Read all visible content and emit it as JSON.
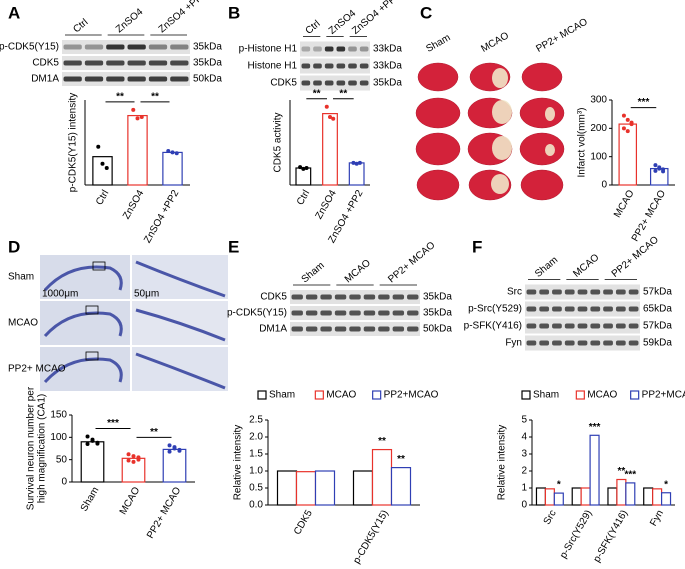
{
  "labels": [
    "A",
    "B",
    "C",
    "D",
    "E",
    "F"
  ],
  "blots": {
    "A": {
      "columns": [
        "Ctrl",
        "ZnSO4",
        "ZnSO4 +PP2"
      ],
      "rows": [
        {
          "label": "p-CDK5(Y15)",
          "kda": "35kDa"
        },
        {
          "label": "CDK5",
          "kda": "35kDa"
        },
        {
          "label": "DM1A",
          "kda": "50kDa"
        }
      ]
    },
    "B": {
      "columns": [
        "Ctrl",
        "ZnSO4",
        "ZnSO4 +PP2"
      ],
      "rows": [
        {
          "label": "p-Histone H1",
          "kda": "33kDa"
        },
        {
          "label": "Histone H1",
          "kda": "33kDa"
        },
        {
          "label": "CDK5",
          "kda": "35kDa"
        }
      ]
    },
    "E": {
      "columns": [
        "Sham",
        "MCAO",
        "PP2+ MCAO"
      ],
      "rows": [
        {
          "label": "CDK5",
          "kda": "35kDa"
        },
        {
          "label": "p-CDK5(Y15)",
          "kda": "35kDa"
        },
        {
          "label": "DM1A",
          "kda": "50kDa"
        }
      ]
    },
    "F": {
      "columns": [
        "Sham",
        "MCAO",
        "PP2+ MCAO"
      ],
      "rows": [
        {
          "label": "Src",
          "kda": "57kDa"
        },
        {
          "label": "p-Src(Y529)",
          "kda": "65kDa"
        },
        {
          "label": "p-SFK(Y416)",
          "kda": "57kDa"
        },
        {
          "label": "Fyn",
          "kda": "59kDa"
        }
      ]
    }
  },
  "images": {
    "C": {
      "columns": [
        "Sham",
        "MCAO",
        "PP2+ MCAO"
      ]
    },
    "D": {
      "rows": [
        "Sham",
        "MCAO",
        "PP2+ MCAO"
      ],
      "scale_bars": [
        "1000μm",
        "50μm"
      ]
    }
  },
  "chart_data": [
    {
      "type": "bar",
      "ylabel": [
        "p-CDK5(Y15) intensity"
      ],
      "categories": [
        "Ctrl",
        "ZnSO4",
        "ZnSO4 +PP2"
      ],
      "colors": [
        "#000000",
        "#e8322b",
        "#2f3fb4"
      ],
      "values": [
        1.0,
        2.45,
        1.15
      ],
      "points": [
        [
          1.35,
          0.75,
          0.6
        ],
        [
          2.65,
          2.35,
          2.4
        ],
        [
          1.2,
          1.15,
          1.12
        ]
      ],
      "ylim": [
        0,
        3
      ],
      "significance": [
        "**",
        "**"
      ]
    },
    {
      "type": "bar",
      "ylabel": [
        "CDK5 activity"
      ],
      "categories": [
        "Ctrl",
        "ZnSO4",
        "ZnSO4 +PP2"
      ],
      "colors": [
        "#000000",
        "#e8322b",
        "#2f3fb4"
      ],
      "values": [
        1.0,
        4.2,
        1.3
      ],
      "points": [
        [
          1.05,
          0.95,
          1.0
        ],
        [
          4.6,
          4.0,
          3.9
        ],
        [
          1.3,
          1.25,
          1.3
        ]
      ],
      "ylim": [
        0,
        5
      ],
      "significance": [
        "**",
        "**"
      ]
    },
    {
      "type": "bar",
      "ylabel": [
        "Infarct vol(mm³)"
      ],
      "categories": [
        "MCAO",
        "PP2+ MCAO"
      ],
      "colors": [
        "#e8322b",
        "#2f3fb4"
      ],
      "values": [
        215,
        58
      ],
      "points": [
        [
          245,
          230,
          215,
          200,
          190,
          220
        ],
        [
          70,
          62,
          55,
          50,
          58,
          48
        ]
      ],
      "ylim": [
        0,
        300
      ],
      "yticks": [
        0,
        100,
        200,
        300
      ],
      "significance": [
        "***"
      ]
    },
    {
      "type": "bar",
      "ylabel": [
        "Survival neuron number per",
        "high magnification (CA1)"
      ],
      "categories": [
        "Sham",
        "MCAO",
        "PP2+ MCAO"
      ],
      "colors": [
        "#000000",
        "#e8322b",
        "#2f3fb4"
      ],
      "values": [
        90,
        53,
        73
      ],
      "points": [
        [
          102,
          92,
          88,
          85,
          95,
          86
        ],
        [
          62,
          58,
          50,
          48,
          45,
          55
        ],
        [
          82,
          78,
          70,
          68,
          75,
          72
        ]
      ],
      "ylim": [
        0,
        150
      ],
      "yticks": [
        0,
        50,
        100,
        150
      ],
      "significance": [
        "***",
        "**"
      ]
    },
    {
      "type": "grouped-bar",
      "ylabel": [
        "Relative intensity"
      ],
      "categories": [
        "CDK5",
        "p-CDK5(Y15)"
      ],
      "legend": "top",
      "series": [
        {
          "name": "Sham",
          "color": "#000000",
          "values": [
            1.0,
            1.0
          ],
          "significance": [
            null,
            null
          ]
        },
        {
          "name": "MCAO",
          "color": "#e8322b",
          "values": [
            0.98,
            1.63
          ],
          "significance": [
            null,
            "**"
          ]
        },
        {
          "name": "PP2+MCAO",
          "color": "#2f3fb4",
          "values": [
            1.0,
            1.1
          ],
          "significance": [
            null,
            "**"
          ]
        }
      ],
      "ylim": [
        0,
        2.5
      ],
      "yticks": [
        {
          "value": 0,
          "label": "0.0"
        },
        0.5,
        {
          "value": 1,
          "label": "1.0"
        },
        1.5,
        {
          "value": 2,
          "label": "2.0"
        },
        2.5
      ]
    },
    {
      "type": "grouped-bar",
      "ylabel": [
        "Relative intensity"
      ],
      "categories": [
        "Src",
        "p-Src(Y529)",
        "p-SFK(Y416)",
        "Fyn"
      ],
      "legend": "top",
      "series": [
        {
          "name": "Sham",
          "color": "#000000",
          "values": [
            1.0,
            1.0,
            1.0,
            1.0
          ],
          "significance": [
            null,
            null,
            null,
            null
          ]
        },
        {
          "name": "MCAO",
          "color": "#e8322b",
          "values": [
            0.95,
            1.0,
            1.5,
            0.95
          ],
          "significance": [
            null,
            null,
            "**",
            null
          ]
        },
        {
          "name": "PP2+MCAO",
          "color": "#2f3fb4",
          "values": [
            0.7,
            4.1,
            1.3,
            0.72
          ],
          "significance": [
            "*",
            "***",
            "***",
            "*"
          ]
        }
      ],
      "ylim": [
        0,
        5
      ],
      "yticks": [
        0,
        1,
        2,
        3,
        4,
        5
      ]
    }
  ]
}
